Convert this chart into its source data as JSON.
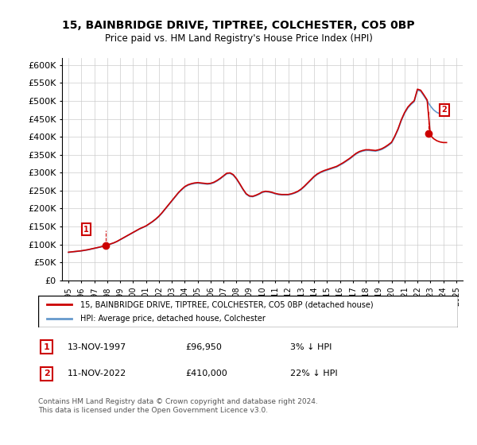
{
  "title": "15, BAINBRIDGE DRIVE, TIPTREE, COLCHESTER, CO5 0BP",
  "subtitle": "Price paid vs. HM Land Registry's House Price Index (HPI)",
  "xlabel": "",
  "ylabel": "",
  "background_color": "#ffffff",
  "grid_color": "#cccccc",
  "hpi_color": "#6699cc",
  "price_color": "#cc0000",
  "sale1_year": 1997.87,
  "sale1_price": 96950,
  "sale2_year": 2022.87,
  "sale2_price": 410000,
  "ylim": [
    0,
    620000
  ],
  "yticks": [
    0,
    50000,
    100000,
    150000,
    200000,
    250000,
    300000,
    350000,
    400000,
    450000,
    500000,
    550000,
    600000
  ],
  "ytick_labels": [
    "£0",
    "£50K",
    "£100K",
    "£150K",
    "£200K",
    "£250K",
    "£300K",
    "£350K",
    "£400K",
    "£450K",
    "£500K",
    "£550K",
    "£600K"
  ],
  "xlim": [
    1994.5,
    2025.5
  ],
  "xticks": [
    1995,
    1996,
    1997,
    1998,
    1999,
    2000,
    2001,
    2002,
    2003,
    2004,
    2005,
    2006,
    2007,
    2008,
    2009,
    2010,
    2011,
    2012,
    2013,
    2014,
    2015,
    2016,
    2017,
    2018,
    2019,
    2020,
    2021,
    2022,
    2023,
    2024,
    2025
  ],
  "legend_label1": "15, BAINBRIDGE DRIVE, TIPTREE, COLCHESTER, CO5 0BP (detached house)",
  "legend_label2": "HPI: Average price, detached house, Colchester",
  "annotation1_label": "1",
  "annotation1_date": "13-NOV-1997",
  "annotation1_price": "£96,950",
  "annotation1_hpi": "3% ↓ HPI",
  "annotation2_label": "2",
  "annotation2_date": "11-NOV-2022",
  "annotation2_price": "£410,000",
  "annotation2_hpi": "22% ↓ HPI",
  "footer": "Contains HM Land Registry data © Crown copyright and database right 2024.\nThis data is licensed under the Open Government Licence v3.0.",
  "hpi_data_years": [
    1995,
    1995.25,
    1995.5,
    1995.75,
    1996,
    1996.25,
    1996.5,
    1996.75,
    1997,
    1997.25,
    1997.5,
    1997.75,
    1998,
    1998.25,
    1998.5,
    1998.75,
    1999,
    1999.25,
    1999.5,
    1999.75,
    2000,
    2000.25,
    2000.5,
    2000.75,
    2001,
    2001.25,
    2001.5,
    2001.75,
    2002,
    2002.25,
    2002.5,
    2002.75,
    2003,
    2003.25,
    2003.5,
    2003.75,
    2004,
    2004.25,
    2004.5,
    2004.75,
    2005,
    2005.25,
    2005.5,
    2005.75,
    2006,
    2006.25,
    2006.5,
    2006.75,
    2007,
    2007.25,
    2007.5,
    2007.75,
    2008,
    2008.25,
    2008.5,
    2008.75,
    2009,
    2009.25,
    2009.5,
    2009.75,
    2010,
    2010.25,
    2010.5,
    2010.75,
    2011,
    2011.25,
    2011.5,
    2011.75,
    2012,
    2012.25,
    2012.5,
    2012.75,
    2013,
    2013.25,
    2013.5,
    2013.75,
    2014,
    2014.25,
    2014.5,
    2014.75,
    2015,
    2015.25,
    2015.5,
    2015.75,
    2016,
    2016.25,
    2016.5,
    2016.75,
    2017,
    2017.25,
    2017.5,
    2017.75,
    2018,
    2018.25,
    2018.5,
    2018.75,
    2019,
    2019.25,
    2019.5,
    2019.75,
    2020,
    2020.25,
    2020.5,
    2020.75,
    2021,
    2021.25,
    2021.5,
    2021.75,
    2022,
    2022.25,
    2022.5,
    2022.75,
    2023,
    2023.25,
    2023.5,
    2023.75,
    2024,
    2024.25
  ],
  "hpi_data_values": [
    78000,
    79000,
    80000,
    81000,
    82000,
    83500,
    85000,
    87000,
    89000,
    91000,
    93000,
    95000,
    98000,
    101000,
    104000,
    108000,
    113000,
    118000,
    123000,
    128000,
    133000,
    138000,
    143000,
    147000,
    151000,
    157000,
    163000,
    170000,
    178000,
    188000,
    199000,
    210000,
    221000,
    232000,
    243000,
    252000,
    260000,
    265000,
    268000,
    270000,
    271000,
    270000,
    269000,
    268000,
    269000,
    272000,
    277000,
    283000,
    290000,
    297000,
    298000,
    293000,
    282000,
    268000,
    253000,
    240000,
    234000,
    233000,
    236000,
    240000,
    245000,
    247000,
    246000,
    244000,
    241000,
    239000,
    238000,
    238000,
    238000,
    240000,
    243000,
    247000,
    253000,
    261000,
    270000,
    279000,
    288000,
    295000,
    300000,
    304000,
    307000,
    310000,
    313000,
    316000,
    321000,
    326000,
    332000,
    338000,
    345000,
    352000,
    357000,
    360000,
    362000,
    362000,
    361000,
    360000,
    362000,
    365000,
    370000,
    376000,
    383000,
    400000,
    420000,
    445000,
    465000,
    480000,
    490000,
    498000,
    530000,
    527000,
    514000,
    500000,
    486000,
    475000,
    468000,
    464000,
    462000,
    462000
  ]
}
